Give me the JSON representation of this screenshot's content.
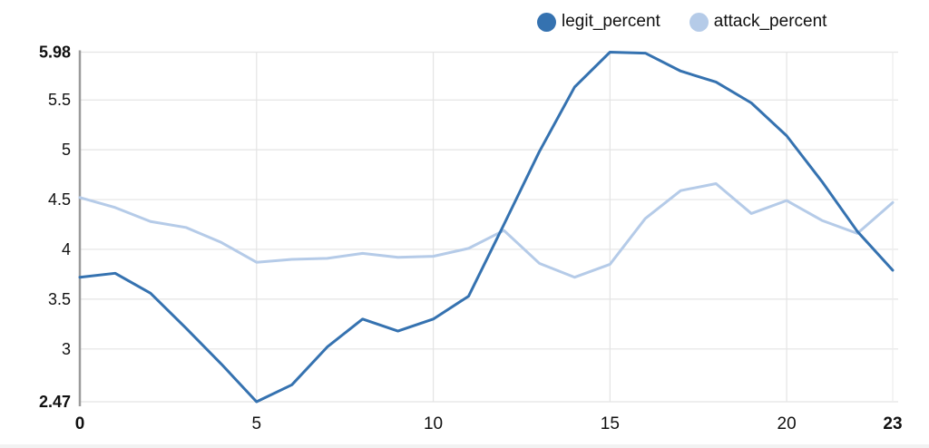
{
  "chart_data": {
    "type": "line",
    "title": "",
    "xlabel": "",
    "ylabel": "",
    "xlim": [
      0,
      23
    ],
    "ylim": [
      2.47,
      5.98
    ],
    "grid": true,
    "legend_position": "top-right",
    "x": [
      0,
      1,
      2,
      3,
      4,
      5,
      6,
      7,
      8,
      9,
      10,
      11,
      12,
      13,
      14,
      15,
      16,
      17,
      18,
      19,
      20,
      21,
      22,
      23
    ],
    "series": [
      {
        "name": "legit_percent",
        "color": "#3572b0",
        "values": [
          3.72,
          3.76,
          3.56,
          3.21,
          2.85,
          2.47,
          2.64,
          3.02,
          3.3,
          3.18,
          3.3,
          3.53,
          4.25,
          4.98,
          5.63,
          5.98,
          5.97,
          5.79,
          5.68,
          5.47,
          5.14,
          4.68,
          4.18,
          3.79
        ]
      },
      {
        "name": "attack_percent",
        "color": "#b5cbe8",
        "values": [
          4.52,
          4.42,
          4.28,
          4.22,
          4.07,
          3.87,
          3.9,
          3.91,
          3.96,
          3.92,
          3.93,
          4.01,
          4.19,
          3.86,
          3.72,
          3.85,
          4.31,
          4.59,
          4.66,
          4.36,
          4.49,
          4.29,
          4.16,
          4.47
        ]
      }
    ],
    "y_ticks": [
      {
        "v": 2.47,
        "label": "2.47",
        "bold": true
      },
      {
        "v": 3,
        "label": "3",
        "bold": false
      },
      {
        "v": 3.5,
        "label": "3.5",
        "bold": false
      },
      {
        "v": 4,
        "label": "4",
        "bold": false
      },
      {
        "v": 4.5,
        "label": "4.5",
        "bold": false
      },
      {
        "v": 5,
        "label": "5",
        "bold": false
      },
      {
        "v": 5.5,
        "label": "5.5",
        "bold": false
      },
      {
        "v": 5.98,
        "label": "5.98",
        "bold": true
      }
    ],
    "x_ticks": [
      {
        "v": 0,
        "label": "0",
        "bold": true
      },
      {
        "v": 5,
        "label": "5",
        "bold": false
      },
      {
        "v": 10,
        "label": "10",
        "bold": false
      },
      {
        "v": 15,
        "label": "15",
        "bold": false
      },
      {
        "v": 20,
        "label": "20",
        "bold": false
      },
      {
        "v": 23,
        "label": "23",
        "bold": true
      }
    ],
    "colors": {
      "grid_line": "#e4e4e4",
      "edge_grid_line": "#ededed",
      "y_axis_line": "#9b9b9b",
      "tick_text": "#111111"
    }
  }
}
